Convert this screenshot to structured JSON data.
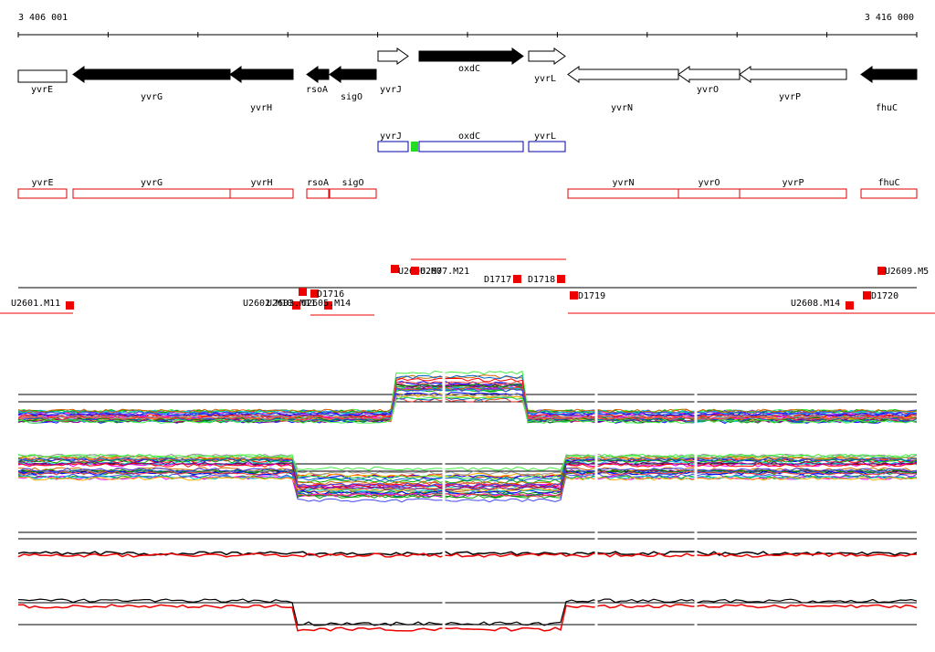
{
  "ruler": {
    "start": "3 406 001",
    "end": "3 416 000"
  },
  "genes": [
    "yvrE",
    "yvrG",
    "yvrH",
    "rsoA",
    "sigO",
    "yvrJ",
    "oxdC",
    "yvrL",
    "yvrN",
    "yvrO",
    "yvrP",
    "fhuC"
  ],
  "transcripts": [
    "yvrJ",
    "oxdC",
    "yvrL"
  ],
  "cds": [
    "yvrE",
    "yvrG",
    "yvrH",
    "rsoA",
    "sigO",
    "yvrN",
    "yvrO",
    "yvrP",
    "fhuC"
  ],
  "segments": [
    "U2601.M11",
    "U2602.M10",
    "U2603.M11",
    "U2605.M14",
    "D1716",
    "U2606.M7",
    "U2607.M21",
    "D1717",
    "D1718",
    "D1719",
    "U2608.M14",
    "D1720",
    "U2609.M5"
  ]
}
